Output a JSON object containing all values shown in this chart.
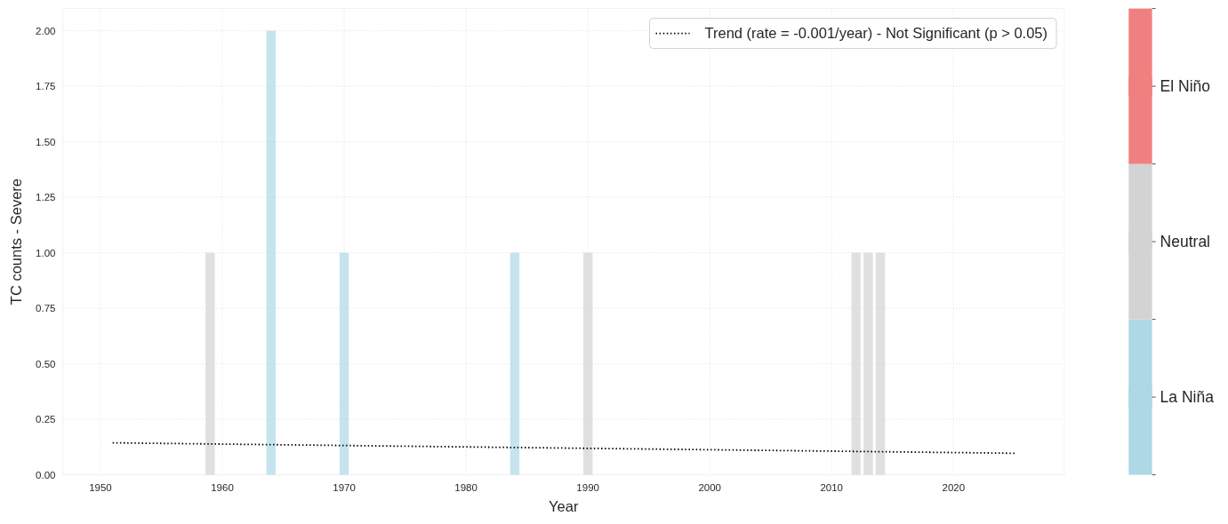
{
  "chart_data": {
    "type": "bar",
    "xlabel": "Year",
    "ylabel": "TC counts - Severe",
    "xlim": [
      1946.9,
      2029.1
    ],
    "xticks": [
      1950,
      1960,
      1970,
      1980,
      1990,
      2000,
      2010,
      2020
    ],
    "ylim": [
      0,
      2.1
    ],
    "yticks": [
      {
        "value": 0,
        "label": "0.00"
      },
      {
        "value": 0.25,
        "label": "0.25"
      },
      {
        "value": 0.5,
        "label": "0.50"
      },
      {
        "value": 0.75,
        "label": "0.75"
      },
      {
        "value": 1,
        "label": "1.00"
      },
      {
        "value": 1.25,
        "label": "1.25"
      },
      {
        "value": 1.5,
        "label": "1.50"
      },
      {
        "value": 1.75,
        "label": "1.75"
      },
      {
        "value": 2,
        "label": "2.00"
      }
    ],
    "grid": true,
    "legend": "top right",
    "series": [
      {
        "name": "La Niña",
        "color": "#add8e6",
        "x": [
          1964,
          1970,
          1984
        ],
        "values": [
          2,
          1,
          1
        ]
      },
      {
        "name": "Neutral",
        "color": "#d3d3d3",
        "x": [
          1959,
          1990,
          2012,
          2013,
          2014
        ],
        "values": [
          1,
          1,
          1,
          1,
          1
        ]
      },
      {
        "name": "El Niño",
        "color": "#f08080"
      },
      {
        "name": "Trend (rate = -0.001/year) - Not Significant (p > 0.05)",
        "type": "line",
        "color": "#000000",
        "line_style": "dotted",
        "x": [
          1951,
          2025
        ],
        "values": [
          0.144,
          0.097
        ]
      }
    ]
  }
}
